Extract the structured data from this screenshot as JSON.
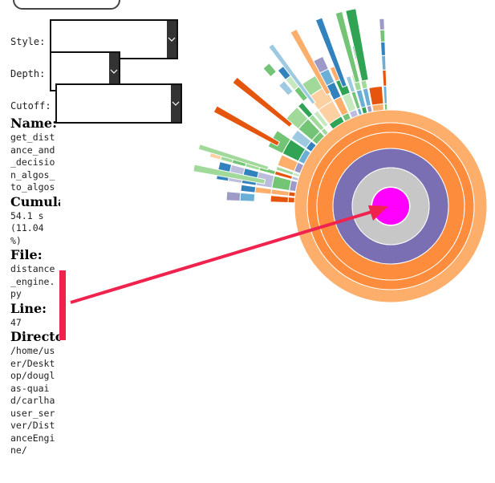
{
  "controls": {
    "style_label": "Style:",
    "depth_label": "Depth:",
    "cutoff_label": "Cutoff:",
    "style_value": "",
    "depth_value": "",
    "cutoff_value": ""
  },
  "info": {
    "name_heading": "Name:",
    "name_value": "get_distance_and_decision_algos_to_algos",
    "cumulative_heading": "Cumulative Time:",
    "cumulative_value": "54.1 s (11.04 %)",
    "file_heading": "File:",
    "file_value": "distance_engine.py",
    "line_heading": "Line:",
    "line_value": "47",
    "directory_heading": "Directory:",
    "directory_value": "/home/user/Desktop/douglas-quaid/carlhauser_server/DistanceEngine/"
  },
  "colors": {
    "center": "#ff00ff",
    "annotation": "#f0224e",
    "ring1": "#c7c7c7",
    "ring2": "#7b6fb4",
    "ring3": "#fd8d3c",
    "ring4": "#fdae6b"
  }
}
